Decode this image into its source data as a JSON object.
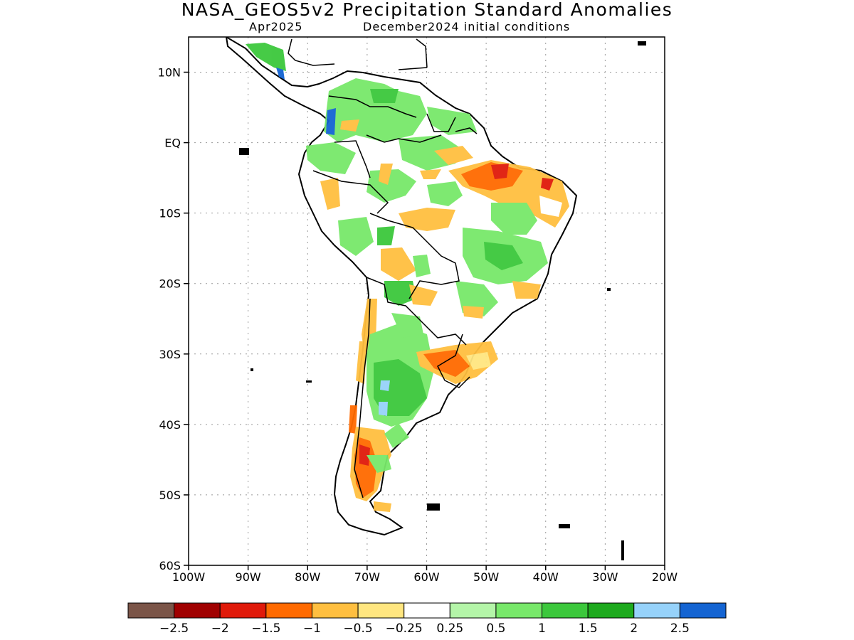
{
  "header": {
    "title": "NASA_GEOS5v2 Precipitation Standard Anomalies",
    "valid_month": "Apr2025",
    "init_conditions": "December2024 initial conditions"
  },
  "map": {
    "lon_range": [
      -100,
      -20
    ],
    "lat_range": [
      -60,
      15
    ],
    "y_ticks": [
      {
        "lat": 10,
        "label": "10N"
      },
      {
        "lat": 0,
        "label": "EQ"
      },
      {
        "lat": -10,
        "label": "10S"
      },
      {
        "lat": -20,
        "label": "20S"
      },
      {
        "lat": -30,
        "label": "30S"
      },
      {
        "lat": -40,
        "label": "40S"
      },
      {
        "lat": -50,
        "label": "50S"
      },
      {
        "lat": -60,
        "label": "60S"
      }
    ],
    "x_ticks": [
      {
        "lon": -100,
        "label": "100W"
      },
      {
        "lon": -90,
        "label": "90W"
      },
      {
        "lon": -80,
        "label": "80W"
      },
      {
        "lon": -70,
        "label": "70W"
      },
      {
        "lon": -60,
        "label": "60W"
      },
      {
        "lon": -50,
        "label": "50W"
      },
      {
        "lon": -40,
        "label": "40W"
      },
      {
        "lon": -30,
        "label": "30W"
      },
      {
        "lon": -20,
        "label": "20W"
      }
    ],
    "grid": "dotted",
    "land_fill": "#ffffff",
    "coast_color": "#000000"
  },
  "colorbar": {
    "colors": [
      "#7b5548",
      "#a00000",
      "#e01a0a",
      "#ff6a00",
      "#ffbf40",
      "#ffe680",
      "#ffffff",
      "#b4f5a8",
      "#78e86a",
      "#3cc83c",
      "#1eaa1e",
      "#96d2fa",
      "#1464d2"
    ],
    "labels": [
      "−2.5",
      "−2",
      "−1.5",
      "−1",
      "−0.5",
      "−0.25",
      "0.25",
      "0.5",
      "1",
      "1.5",
      "2",
      "2.5"
    ]
  }
}
